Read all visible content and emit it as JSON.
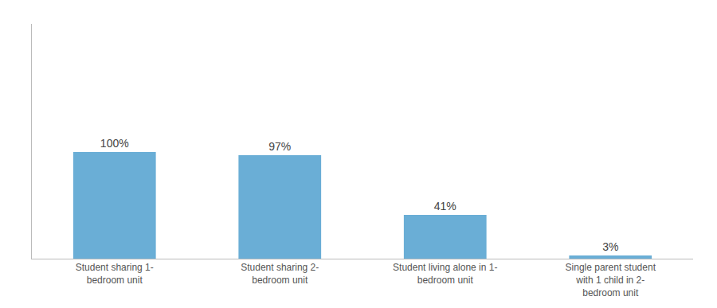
{
  "chart_data": {
    "type": "bar",
    "categories": [
      "Student sharing 1-\nbedroom unit",
      "Student sharing 2-\nbedroom unit",
      "Student living alone in 1-\nbedroom unit",
      "Single parent student\nwith 1 child in 2-\nbedroom unit"
    ],
    "values": [
      100,
      97,
      41,
      3
    ],
    "value_labels": [
      "100%",
      "97%",
      "41%",
      "3%"
    ],
    "data_labels": true,
    "color": "#6aaed6",
    "ylim": [
      0,
      220
    ],
    "grid": false,
    "tick_labels": "x"
  }
}
